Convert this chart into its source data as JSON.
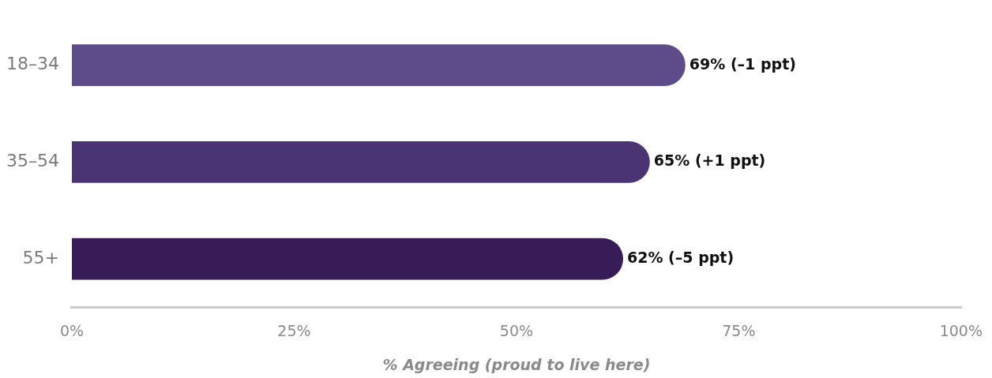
{
  "chart_data": {
    "type": "bar",
    "orientation": "horizontal",
    "categories": [
      "18–34",
      "35–54",
      "55+"
    ],
    "values": [
      69,
      65,
      62
    ],
    "colors": [
      "#5d4b8a",
      "#4b3474",
      "#381c57"
    ],
    "value_labels": [
      "69% (–1 ppt)",
      "65% (+1 ppt)",
      "62% (–5 ppt)"
    ],
    "xlim": [
      0,
      100
    ],
    "xticks": [
      {
        "value": 0,
        "label": "0%"
      },
      {
        "value": 25,
        "label": "25%"
      },
      {
        "value": 50,
        "label": "50%"
      },
      {
        "value": 75,
        "label": "75%"
      },
      {
        "value": 100,
        "label": "100%"
      }
    ],
    "xlabel": "% Agreeing (proud to live here)",
    "grid": false,
    "legend": false
  }
}
